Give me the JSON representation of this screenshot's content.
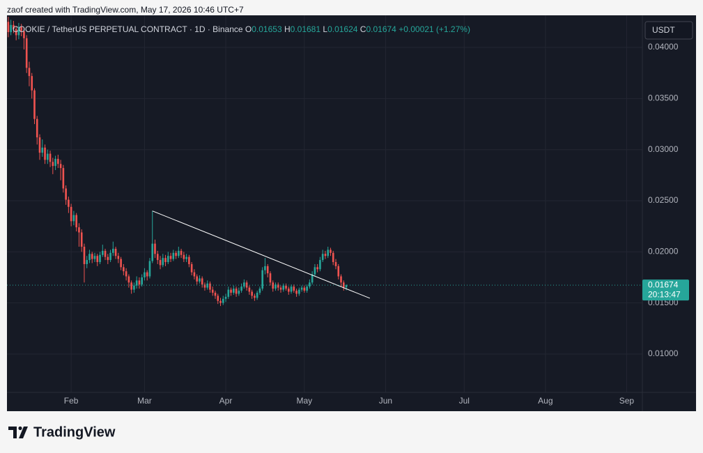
{
  "header": {
    "text": "zaof created with TradingView.com, May 17, 2026 10:46 UTC+7",
    "brand": "TradingView"
  },
  "chart_data": {
    "type": "candlestick",
    "symbol": "COOKIE / TetherUS PERPETUAL CONTRACT · 1D · Binance",
    "ohlc_labels": [
      "O",
      "H",
      "L",
      "C"
    ],
    "change": "+0.00021 (+1.27%)",
    "currency": "USDT",
    "countdown": "20:13:47",
    "up_color": "#26a69a",
    "down_color": "#ef5350",
    "trendline_color": "#ffffff",
    "grid": true,
    "open": [
      0.0425,
      0.0415,
      0.0422,
      0.0418,
      0.0412,
      0.042,
      0.0416,
      0.0409,
      0.038,
      0.0372,
      0.0358,
      0.033,
      0.0312,
      0.0297,
      0.0302,
      0.029,
      0.0296,
      0.0288,
      0.0284,
      0.0291,
      0.0286,
      0.0282,
      0.0262,
      0.0251,
      0.0244,
      0.023,
      0.0236,
      0.0224,
      0.0219,
      0.0205,
      0.0188,
      0.0192,
      0.0198,
      0.0193,
      0.0196,
      0.019,
      0.0197,
      0.0201,
      0.0195,
      0.0192,
      0.0199,
      0.0203,
      0.0196,
      0.0193,
      0.0185,
      0.0181,
      0.0176,
      0.017,
      0.0163,
      0.0167,
      0.0172,
      0.0168,
      0.0175,
      0.018,
      0.0176,
      0.0191,
      0.0208,
      0.0198,
      0.0192,
      0.0187,
      0.0194,
      0.019,
      0.0196,
      0.0193,
      0.0199,
      0.0196,
      0.0201,
      0.0197,
      0.0193,
      0.0195,
      0.0188,
      0.018,
      0.0176,
      0.0171,
      0.0174,
      0.0168,
      0.0165,
      0.0169,
      0.0163,
      0.016,
      0.0157,
      0.0152,
      0.015,
      0.0154,
      0.0156,
      0.0163,
      0.016,
      0.0164,
      0.0159,
      0.0162,
      0.0166,
      0.017,
      0.0165,
      0.0161,
      0.0157,
      0.0155,
      0.016,
      0.0164,
      0.0182,
      0.0186,
      0.0179,
      0.017,
      0.0164,
      0.0168,
      0.0165,
      0.0163,
      0.0167,
      0.0164,
      0.0161,
      0.0166,
      0.0162,
      0.0159,
      0.0163,
      0.0165,
      0.0162,
      0.0166,
      0.017,
      0.0178,
      0.0185,
      0.0183,
      0.0192,
      0.0198,
      0.0196,
      0.0202,
      0.0199,
      0.019,
      0.0186,
      0.0176,
      0.017,
      0.01653
    ],
    "high": [
      0.043,
      0.0427,
      0.0426,
      0.0421,
      0.0424,
      0.0423,
      0.0419,
      0.0412,
      0.0386,
      0.0375,
      0.036,
      0.0333,
      0.0315,
      0.031,
      0.0305,
      0.03,
      0.0299,
      0.0292,
      0.0294,
      0.0295,
      0.029,
      0.0285,
      0.0265,
      0.0254,
      0.0247,
      0.024,
      0.0238,
      0.0228,
      0.0222,
      0.0208,
      0.0196,
      0.0202,
      0.02,
      0.0199,
      0.0198,
      0.02,
      0.0207,
      0.0203,
      0.0198,
      0.0202,
      0.021,
      0.0205,
      0.0199,
      0.0195,
      0.0188,
      0.0184,
      0.0178,
      0.0172,
      0.017,
      0.0176,
      0.0175,
      0.0178,
      0.0184,
      0.0182,
      0.0194,
      0.024,
      0.0212,
      0.0201,
      0.0196,
      0.0198,
      0.0197,
      0.02,
      0.0199,
      0.0202,
      0.0201,
      0.0205,
      0.0203,
      0.02,
      0.0198,
      0.0197,
      0.019,
      0.0183,
      0.0178,
      0.0177,
      0.0176,
      0.017,
      0.0172,
      0.0171,
      0.0166,
      0.0162,
      0.0159,
      0.0155,
      0.0157,
      0.0159,
      0.0166,
      0.0165,
      0.0167,
      0.0166,
      0.0165,
      0.0169,
      0.0173,
      0.0172,
      0.0167,
      0.0163,
      0.0159,
      0.0162,
      0.0166,
      0.0185,
      0.0194,
      0.0188,
      0.0181,
      0.0172,
      0.017,
      0.017,
      0.0167,
      0.0169,
      0.0169,
      0.0166,
      0.0168,
      0.0168,
      0.0164,
      0.0165,
      0.0167,
      0.0167,
      0.0168,
      0.0173,
      0.0181,
      0.0188,
      0.0188,
      0.0195,
      0.0202,
      0.0201,
      0.0205,
      0.0204,
      0.0201,
      0.0193,
      0.0188,
      0.0178,
      0.0172,
      0.01681
    ],
    "low": [
      0.041,
      0.0412,
      0.0414,
      0.0407,
      0.0408,
      0.0411,
      0.0398,
      0.0375,
      0.0362,
      0.035,
      0.0325,
      0.0305,
      0.029,
      0.0293,
      0.0286,
      0.0286,
      0.0283,
      0.0276,
      0.028,
      0.0282,
      0.027,
      0.0258,
      0.0246,
      0.0238,
      0.0225,
      0.0226,
      0.022,
      0.0205,
      0.02,
      0.017,
      0.0184,
      0.0189,
      0.0189,
      0.019,
      0.0186,
      0.0188,
      0.0195,
      0.0192,
      0.0188,
      0.019,
      0.0196,
      0.0193,
      0.0189,
      0.0182,
      0.0177,
      0.0172,
      0.0165,
      0.0159,
      0.016,
      0.0164,
      0.0164,
      0.0166,
      0.0172,
      0.0172,
      0.0174,
      0.0189,
      0.0194,
      0.0188,
      0.0183,
      0.0185,
      0.0186,
      0.0188,
      0.019,
      0.0191,
      0.0193,
      0.0194,
      0.0194,
      0.019,
      0.019,
      0.0185,
      0.0177,
      0.0173,
      0.0168,
      0.0169,
      0.0165,
      0.0162,
      0.0163,
      0.016,
      0.0157,
      0.0154,
      0.0149,
      0.0147,
      0.0148,
      0.0151,
      0.0154,
      0.0157,
      0.0158,
      0.0156,
      0.0157,
      0.016,
      0.0164,
      0.0162,
      0.0158,
      0.0154,
      0.0152,
      0.0153,
      0.0158,
      0.0162,
      0.0178,
      0.0175,
      0.0167,
      0.0161,
      0.0162,
      0.0162,
      0.016,
      0.0161,
      0.0162,
      0.0158,
      0.0159,
      0.016,
      0.0156,
      0.0157,
      0.0161,
      0.016,
      0.016,
      0.0164,
      0.0168,
      0.0176,
      0.018,
      0.0181,
      0.019,
      0.0193,
      0.0194,
      0.0196,
      0.0187,
      0.0183,
      0.0173,
      0.0166,
      0.0162,
      0.01624
    ],
    "close": [
      0.0415,
      0.0422,
      0.0418,
      0.0412,
      0.042,
      0.0416,
      0.0409,
      0.038,
      0.0372,
      0.0358,
      0.033,
      0.0312,
      0.0297,
      0.0302,
      0.029,
      0.0296,
      0.0288,
      0.0284,
      0.0291,
      0.0286,
      0.0282,
      0.0262,
      0.0251,
      0.0244,
      0.023,
      0.0236,
      0.0224,
      0.0219,
      0.0205,
      0.0188,
      0.0192,
      0.0198,
      0.0193,
      0.0196,
      0.019,
      0.0197,
      0.0201,
      0.0195,
      0.0192,
      0.0199,
      0.0203,
      0.0196,
      0.0193,
      0.0185,
      0.0181,
      0.0176,
      0.017,
      0.0163,
      0.0167,
      0.0172,
      0.0168,
      0.0175,
      0.018,
      0.0176,
      0.0191,
      0.0208,
      0.0198,
      0.0192,
      0.0187,
      0.0194,
      0.019,
      0.0196,
      0.0193,
      0.0199,
      0.0196,
      0.0201,
      0.0197,
      0.0193,
      0.0195,
      0.0188,
      0.018,
      0.0176,
      0.0171,
      0.0174,
      0.0168,
      0.0165,
      0.0169,
      0.0163,
      0.016,
      0.0157,
      0.0152,
      0.015,
      0.0154,
      0.0156,
      0.0163,
      0.016,
      0.0164,
      0.0159,
      0.0162,
      0.0166,
      0.017,
      0.0165,
      0.0161,
      0.0157,
      0.0155,
      0.016,
      0.0164,
      0.0182,
      0.0186,
      0.0179,
      0.017,
      0.0164,
      0.0168,
      0.0165,
      0.0163,
      0.0167,
      0.0164,
      0.0161,
      0.0166,
      0.0162,
      0.0159,
      0.0163,
      0.0165,
      0.0162,
      0.0166,
      0.017,
      0.0178,
      0.0185,
      0.0183,
      0.0192,
      0.0198,
      0.0196,
      0.0202,
      0.0199,
      0.019,
      0.0186,
      0.0176,
      0.017,
      0.01653,
      0.01674
    ],
    "trendline": {
      "x": [
        55,
        138
      ],
      "y": [
        0.024,
        0.01546
      ]
    },
    "xlim": [
      -0.5,
      242
    ],
    "xticks": [
      {
        "value": 24,
        "label": "Feb"
      },
      {
        "value": 52,
        "label": "Mar"
      },
      {
        "value": 83,
        "label": "Apr"
      },
      {
        "value": 113,
        "label": "May"
      },
      {
        "value": 144,
        "label": "Jun"
      },
      {
        "value": 174,
        "label": "Jul"
      },
      {
        "value": 205,
        "label": "Aug"
      },
      {
        "value": 236,
        "label": "Sep"
      }
    ],
    "ylim": [
      0.00625,
      0.04314
    ],
    "yticks": [
      {
        "value": 0.01,
        "label": "0.01000"
      },
      {
        "value": 0.015,
        "label": "0.01500"
      },
      {
        "value": 0.02,
        "label": "0.02000"
      },
      {
        "value": 0.025,
        "label": "0.02500"
      },
      {
        "value": 0.03,
        "label": "0.03000"
      },
      {
        "value": 0.035,
        "label": "0.03500"
      },
      {
        "value": 0.04,
        "label": "0.04000"
      }
    ]
  }
}
